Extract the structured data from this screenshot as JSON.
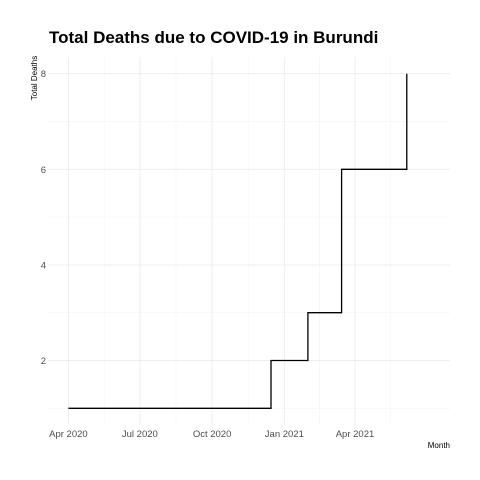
{
  "chart_data": {
    "type": "line",
    "line_style": "step",
    "title": "Total Deaths due to COVID-19 in Burundi",
    "xlabel": "Month",
    "ylabel": "Total Deaths",
    "x_ticks": [
      "2020-04-01",
      "2020-07-01",
      "2020-10-01",
      "2021-01-01",
      "2021-04-01"
    ],
    "x_tick_labels": [
      "Apr 2020",
      "Jul 2020",
      "Oct 2020",
      "Jan 2021",
      "Apr 2021"
    ],
    "y_ticks": [
      2,
      4,
      6,
      8
    ],
    "xlim": [
      "2020-03-06",
      "2021-07-31"
    ],
    "ylim": [
      0.65,
      8.35
    ],
    "grid": true,
    "legend": "none",
    "series": [
      {
        "color": "#000000",
        "points": [
          {
            "x": "2020-04-01",
            "y": 1
          },
          {
            "x": "2020-12-15",
            "y": 1
          },
          {
            "x": "2020-12-15",
            "y": 2
          },
          {
            "x": "2021-01-31",
            "y": 2
          },
          {
            "x": "2021-01-31",
            "y": 3
          },
          {
            "x": "2021-03-15",
            "y": 3
          },
          {
            "x": "2021-03-15",
            "y": 6
          },
          {
            "x": "2021-06-06",
            "y": 6
          },
          {
            "x": "2021-06-06",
            "y": 8
          }
        ]
      }
    ]
  }
}
